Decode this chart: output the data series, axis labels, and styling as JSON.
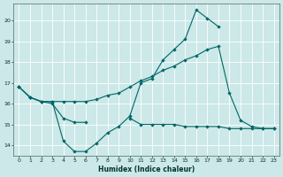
{
  "xlabel": "Humidex (Indice chaleur)",
  "xlim": [
    -0.5,
    23.5
  ],
  "ylim": [
    13.5,
    20.8
  ],
  "yticks": [
    14,
    15,
    16,
    17,
    18,
    19,
    20
  ],
  "xticks": [
    0,
    1,
    2,
    3,
    4,
    5,
    6,
    7,
    8,
    9,
    10,
    11,
    12,
    13,
    14,
    15,
    16,
    17,
    18,
    19,
    20,
    21,
    22,
    23
  ],
  "bg_color": "#cce8e8",
  "line_color": "#006666",
  "grid_color": "#ffffff",
  "line1_y": [
    16.8,
    16.3,
    16.1,
    16.1,
    14.2,
    13.7,
    13.7,
    14.1,
    14.6,
    14.9,
    15.4,
    17.0,
    17.2,
    18.1,
    18.6,
    19.1,
    20.5,
    20.1,
    19.7,
    null,
    null,
    null,
    null,
    null
  ],
  "line2_y": [
    16.8,
    16.3,
    16.1,
    16.0,
    15.3,
    15.1,
    15.1,
    null,
    null,
    null,
    15.3,
    15.0,
    15.0,
    15.0,
    15.0,
    14.9,
    14.9,
    14.9,
    14.9,
    14.8,
    14.8,
    14.8,
    14.8,
    14.8
  ],
  "line3_y": [
    16.8,
    16.3,
    16.1,
    16.1,
    16.1,
    16.1,
    16.1,
    16.2,
    16.4,
    16.5,
    16.8,
    17.1,
    17.3,
    17.6,
    17.8,
    18.1,
    18.3,
    18.6,
    18.75,
    16.5,
    15.2,
    14.9,
    14.8,
    14.8
  ]
}
